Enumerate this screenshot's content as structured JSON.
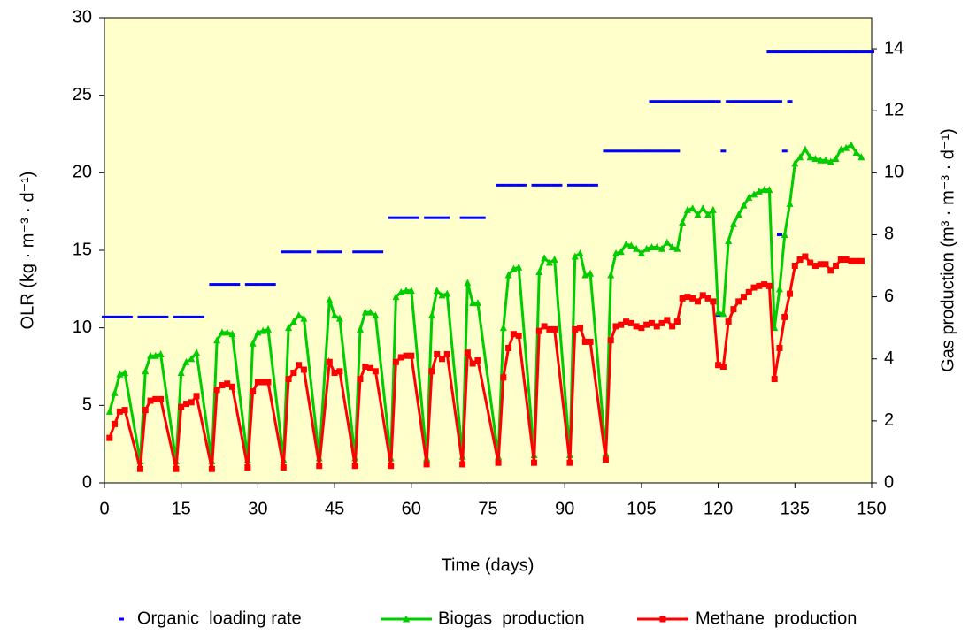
{
  "chart_data": {
    "type": "line",
    "x_label": "Time  (days)",
    "y_label": "OLR (kg · m⁻³ · d⁻¹)",
    "y2_label": "Gas production (m³ · m⁻³ · d⁻¹)",
    "xlim": [
      0,
      150
    ],
    "xticks": [
      0,
      15,
      30,
      45,
      60,
      75,
      90,
      105,
      120,
      135,
      150
    ],
    "ylim": [
      0,
      30
    ],
    "yticks": [
      0,
      5,
      10,
      15,
      20,
      25,
      30
    ],
    "y2lim": [
      0,
      15
    ],
    "y2ticks": [
      0,
      2,
      4,
      6,
      8,
      10,
      12,
      14
    ],
    "background": "#ffffcc",
    "legend": "bottom",
    "series": [
      {
        "name": "Organic  loading rate",
        "color": "#0000ff",
        "marker": "dash",
        "line": false,
        "axis": "y",
        "x": [
          0,
          1,
          2,
          3,
          4,
          5,
          7,
          8,
          9,
          10,
          11,
          12,
          14,
          15,
          16,
          17,
          18,
          19,
          21,
          22,
          23,
          24,
          25,
          26,
          28,
          29,
          30,
          31,
          32,
          33,
          35,
          36,
          37,
          38,
          39,
          40,
          42,
          43,
          44,
          45,
          46,
          49,
          50,
          51,
          52,
          53,
          54,
          56,
          57,
          58,
          59,
          60,
          61,
          63,
          64,
          65,
          66,
          67,
          70,
          71,
          72,
          73,
          74,
          77,
          78,
          79,
          80,
          81,
          82,
          84,
          85,
          86,
          87,
          88,
          89,
          91,
          92,
          93,
          94,
          95,
          96,
          98,
          99,
          100,
          101,
          102,
          103,
          104,
          105,
          106,
          107,
          108,
          109,
          110,
          111,
          112,
          107,
          108,
          109,
          110,
          111,
          112,
          113,
          114,
          115,
          116,
          117,
          118,
          119,
          120,
          120,
          121,
          122,
          123,
          124,
          125,
          126,
          127,
          128,
          129,
          130,
          131,
          132,
          132,
          133,
          134,
          130,
          131,
          132,
          133,
          134,
          135,
          136,
          137,
          138,
          139,
          140,
          141,
          142,
          143,
          144,
          145,
          146,
          147,
          148,
          149,
          150
        ],
        "values": [
          10.7,
          10.7,
          10.7,
          10.7,
          10.7,
          10.7,
          10.7,
          10.7,
          10.7,
          10.7,
          10.7,
          10.7,
          10.7,
          10.7,
          10.7,
          10.7,
          10.7,
          10.7,
          12.8,
          12.8,
          12.8,
          12.8,
          12.8,
          12.8,
          12.8,
          12.8,
          12.8,
          12.8,
          12.8,
          12.8,
          14.9,
          14.9,
          14.9,
          14.9,
          14.9,
          14.9,
          14.9,
          14.9,
          14.9,
          14.9,
          14.9,
          14.9,
          14.9,
          14.9,
          14.9,
          14.9,
          14.9,
          17.1,
          17.1,
          17.1,
          17.1,
          17.1,
          17.1,
          17.1,
          17.1,
          17.1,
          17.1,
          17.1,
          17.1,
          17.1,
          17.1,
          17.1,
          17.1,
          19.2,
          19.2,
          19.2,
          19.2,
          19.2,
          19.2,
          19.2,
          19.2,
          19.2,
          19.2,
          19.2,
          19.2,
          19.2,
          19.2,
          19.2,
          19.2,
          19.2,
          19.2,
          21.4,
          21.4,
          21.4,
          21.4,
          21.4,
          21.4,
          21.4,
          21.4,
          21.4,
          21.4,
          21.4,
          21.4,
          21.4,
          21.4,
          21.4,
          24.6,
          24.6,
          24.6,
          24.6,
          24.6,
          24.6,
          24.6,
          24.6,
          24.6,
          24.6,
          24.6,
          24.6,
          24.6,
          24.6,
          10.8,
          21.4,
          24.6,
          24.6,
          24.6,
          24.6,
          24.6,
          24.6,
          24.6,
          24.6,
          24.6,
          24.6,
          24.6,
          16.0,
          21.4,
          24.6,
          27.8,
          27.8,
          27.8,
          27.8,
          27.8,
          27.8,
          27.8,
          27.8,
          27.8,
          27.8,
          27.8,
          27.8,
          27.8,
          27.8,
          27.8,
          27.8,
          27.8,
          27.8,
          27.8,
          27.8,
          27.8
        ]
      },
      {
        "name": "Biogas  production",
        "color": "#00cc00",
        "marker": "triangle",
        "line": true,
        "axis": "y2",
        "x": [
          1,
          2,
          3,
          4,
          7,
          8,
          9,
          10,
          11,
          14,
          15,
          16,
          17,
          18,
          21,
          22,
          23,
          24,
          25,
          28,
          29,
          30,
          31,
          32,
          35,
          36,
          37,
          38,
          39,
          42,
          44,
          45,
          46,
          49,
          50,
          51,
          52,
          53,
          56,
          57,
          58,
          59,
          60,
          63,
          64,
          65,
          66,
          67,
          70,
          71,
          72,
          73,
          77,
          78,
          79,
          80,
          81,
          84,
          85,
          86,
          87,
          88,
          91,
          92,
          93,
          94,
          95,
          98,
          99,
          100,
          101,
          102,
          103,
          104,
          105,
          106,
          107,
          108,
          109,
          110,
          111,
          112,
          113,
          114,
          115,
          116,
          117,
          118,
          119,
          120,
          121,
          122,
          123,
          124,
          125,
          126,
          127,
          128,
          129,
          130,
          131,
          132,
          133,
          134,
          135,
          136,
          137,
          138,
          139,
          140,
          141,
          142,
          143,
          144,
          145,
          146,
          147,
          148
        ],
        "values": [
          2.3,
          2.9,
          3.5,
          3.55,
          0.7,
          3.6,
          4.1,
          4.1,
          4.15,
          0.7,
          3.55,
          3.9,
          4.0,
          4.2,
          0.7,
          4.6,
          4.85,
          4.85,
          4.8,
          0.75,
          4.5,
          4.85,
          4.9,
          4.95,
          0.75,
          5.0,
          5.2,
          5.4,
          5.3,
          0.8,
          5.9,
          5.4,
          5.3,
          0.8,
          4.95,
          5.5,
          5.5,
          5.4,
          0.8,
          6.0,
          6.15,
          6.2,
          6.2,
          0.8,
          5.4,
          6.2,
          6.05,
          6.1,
          0.85,
          6.45,
          5.8,
          5.8,
          0.85,
          5.0,
          6.7,
          6.9,
          6.95,
          0.9,
          6.8,
          7.25,
          7.1,
          7.2,
          0.9,
          7.3,
          7.4,
          6.7,
          6.75,
          0.95,
          6.7,
          7.4,
          7.45,
          7.7,
          7.65,
          7.55,
          7.4,
          7.55,
          7.6,
          7.6,
          7.55,
          7.75,
          7.6,
          7.55,
          8.4,
          8.8,
          8.85,
          8.65,
          8.85,
          8.65,
          8.8,
          5.5,
          5.45,
          7.8,
          8.35,
          8.65,
          8.95,
          9.2,
          9.3,
          9.4,
          9.45,
          9.45,
          5.0,
          6.25,
          8.0,
          9.0,
          10.3,
          10.5,
          10.75,
          10.5,
          10.45,
          10.4,
          10.4,
          10.35,
          10.45,
          10.75,
          10.8,
          10.9,
          10.65,
          10.5
        ]
      },
      {
        "name": "Methane  production",
        "color": "#ff0000",
        "marker": "square",
        "line": true,
        "axis": "y2",
        "x": [
          1,
          2,
          3,
          4,
          7,
          8,
          9,
          10,
          11,
          14,
          15,
          16,
          17,
          18,
          21,
          22,
          23,
          24,
          25,
          28,
          29,
          30,
          31,
          32,
          35,
          36,
          37,
          38,
          39,
          42,
          44,
          45,
          46,
          49,
          50,
          51,
          52,
          53,
          56,
          57,
          58,
          59,
          60,
          63,
          64,
          65,
          66,
          67,
          70,
          71,
          72,
          73,
          77,
          78,
          79,
          80,
          81,
          84,
          85,
          86,
          87,
          88,
          91,
          92,
          93,
          94,
          95,
          98,
          99,
          100,
          101,
          102,
          103,
          104,
          105,
          106,
          107,
          108,
          109,
          110,
          111,
          112,
          113,
          114,
          115,
          116,
          117,
          118,
          119,
          120,
          121,
          122,
          123,
          124,
          125,
          126,
          127,
          128,
          129,
          130,
          131,
          132,
          133,
          134,
          135,
          136,
          137,
          138,
          139,
          140,
          141,
          142,
          143,
          144,
          145,
          146,
          147,
          148
        ],
        "values": [
          1.45,
          1.9,
          2.3,
          2.35,
          0.45,
          2.35,
          2.65,
          2.7,
          2.7,
          0.45,
          2.45,
          2.55,
          2.6,
          2.8,
          0.45,
          3.0,
          3.15,
          3.2,
          3.1,
          0.5,
          2.95,
          3.25,
          3.25,
          3.25,
          0.5,
          3.35,
          3.55,
          3.8,
          3.65,
          0.55,
          3.9,
          3.55,
          3.6,
          0.55,
          3.35,
          3.75,
          3.7,
          3.6,
          0.55,
          3.9,
          4.05,
          4.1,
          4.1,
          0.6,
          3.6,
          4.15,
          4.0,
          4.15,
          0.6,
          4.2,
          3.85,
          3.95,
          0.65,
          3.4,
          4.35,
          4.8,
          4.75,
          0.65,
          4.9,
          5.05,
          4.95,
          4.95,
          0.65,
          4.95,
          5.0,
          4.55,
          4.55,
          0.75,
          4.6,
          5.05,
          5.1,
          5.2,
          5.15,
          5.05,
          5.0,
          5.1,
          5.15,
          5.05,
          5.15,
          5.25,
          5.05,
          5.2,
          5.95,
          6.0,
          5.95,
          5.85,
          6.05,
          5.95,
          5.85,
          3.8,
          3.75,
          5.2,
          5.6,
          5.85,
          6.0,
          6.15,
          6.3,
          6.35,
          6.4,
          6.35,
          3.35,
          4.35,
          5.35,
          6.1,
          7.0,
          7.2,
          7.3,
          7.1,
          7.0,
          7.05,
          7.05,
          6.85,
          7.0,
          7.2,
          7.2,
          7.15,
          7.15,
          7.15
        ]
      }
    ]
  }
}
